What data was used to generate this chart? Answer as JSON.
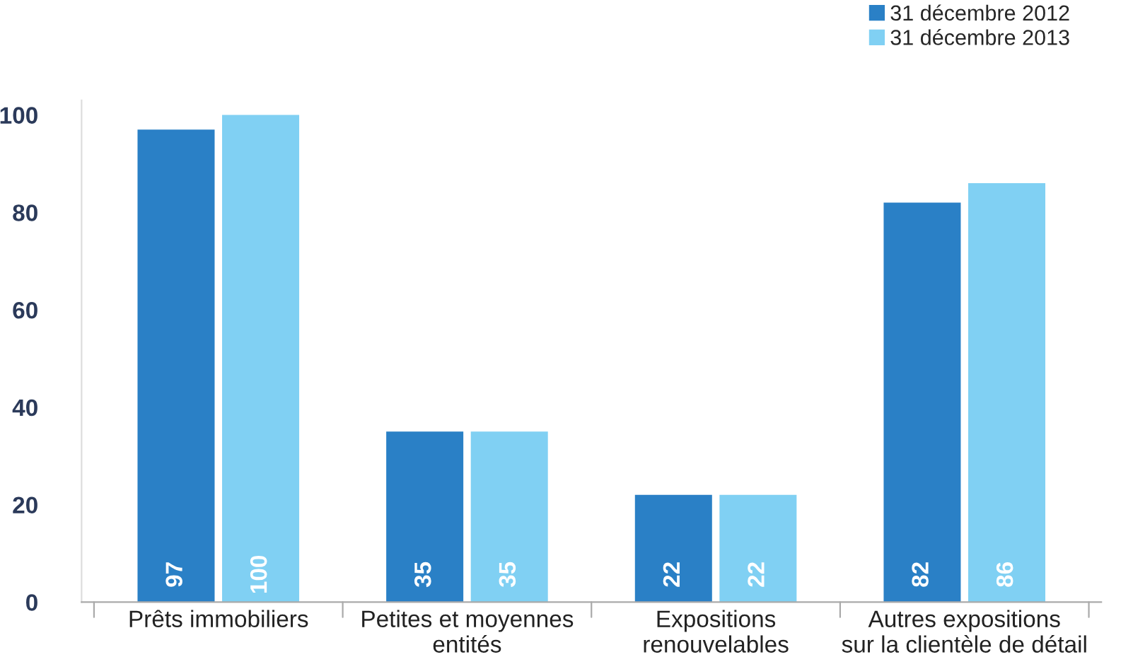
{
  "chart_data": {
    "type": "bar",
    "categories": [
      "Prêts immobiliers",
      "Petites et moyennes\nentités",
      "Expositions\nrenouvelables",
      "Autres expositions\nsur la clientèle de détail"
    ],
    "series": [
      {
        "name": "31 décembre 2012",
        "color": "#2a80c6",
        "values": [
          97,
          35,
          22,
          82
        ]
      },
      {
        "name": "31 décembre 2013",
        "color": "#80d0f3",
        "values": [
          100,
          35,
          22,
          86
        ]
      }
    ],
    "ylim": [
      0,
      103
    ],
    "yticks": [
      0,
      20,
      40,
      60,
      80,
      100
    ],
    "data_labels": true,
    "grid": false,
    "legend": "top right"
  }
}
